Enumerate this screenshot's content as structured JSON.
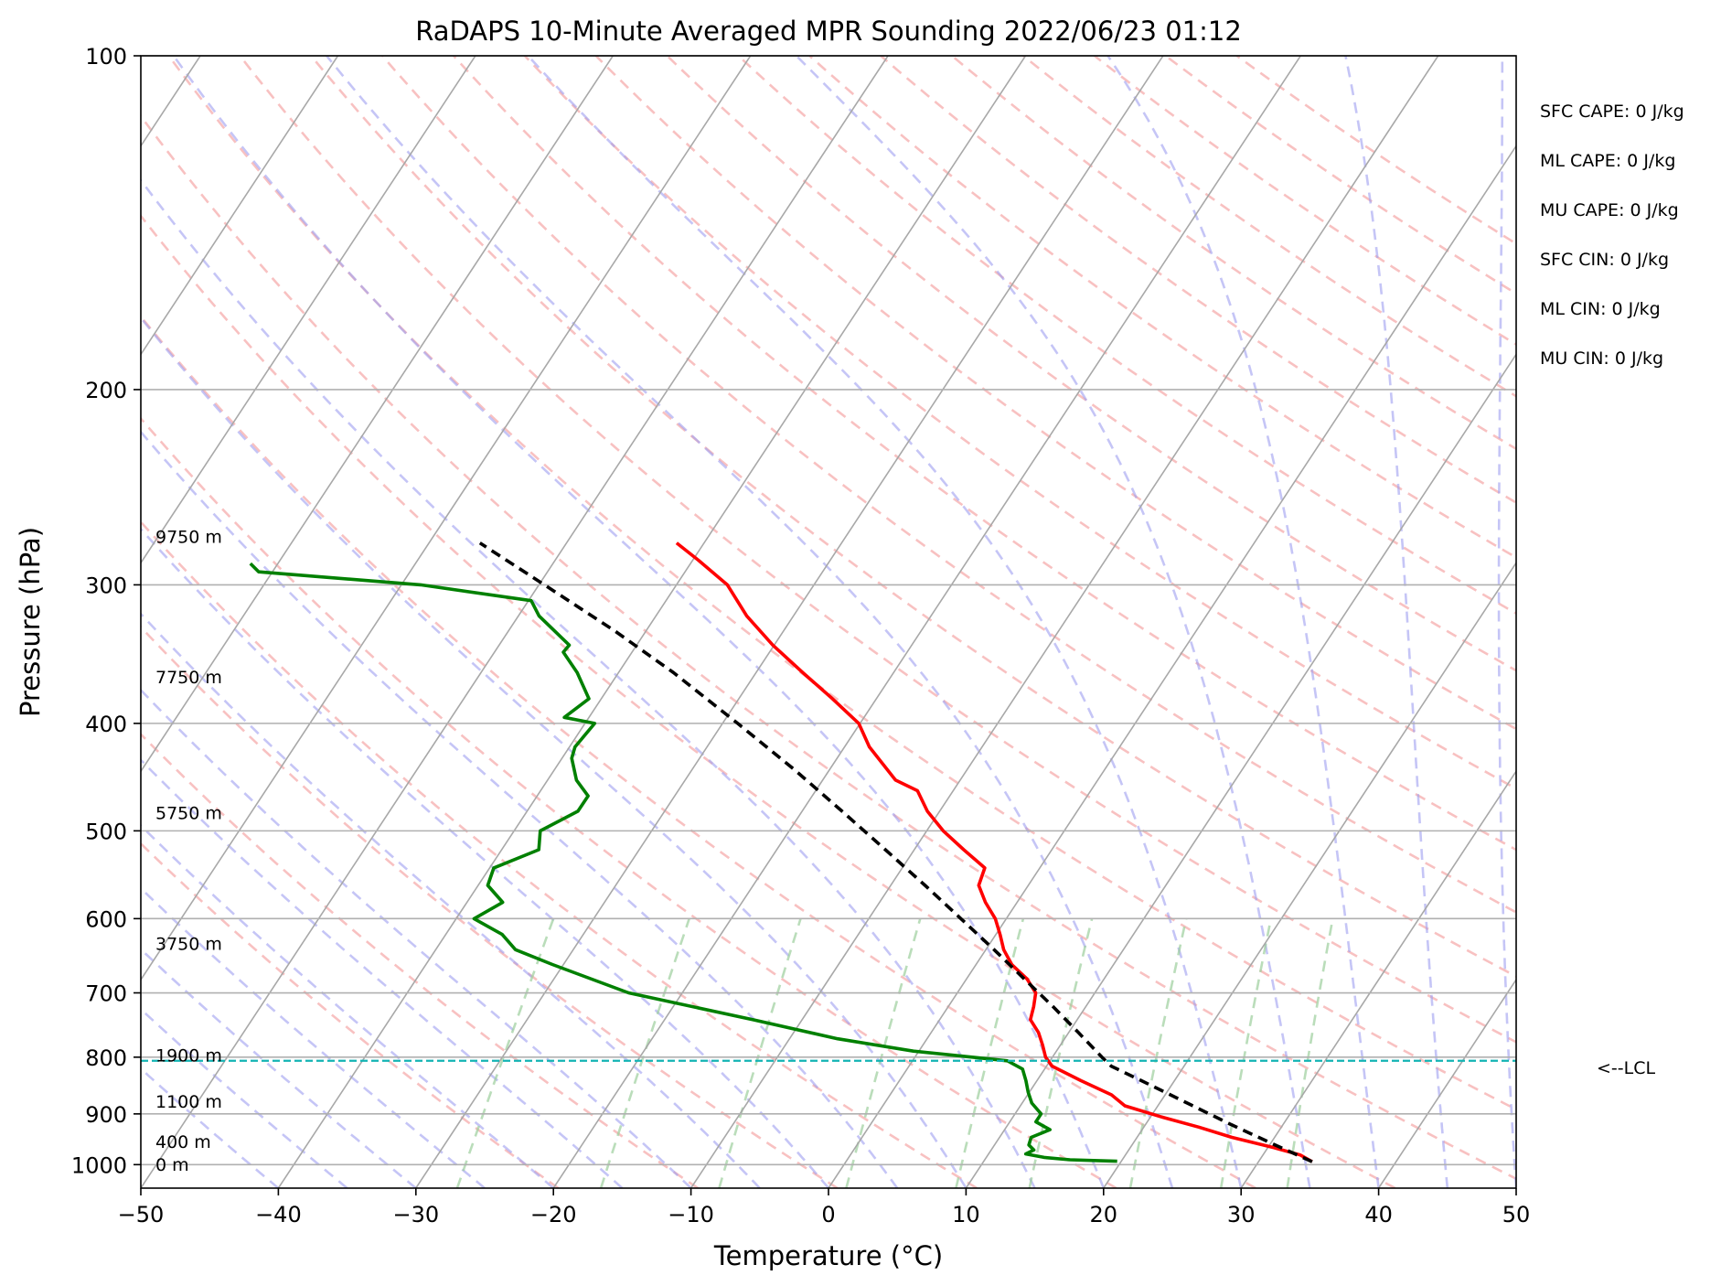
{
  "chart_data": {
    "type": "line",
    "title": "RaDAPS 10-Minute Averaged MPR Sounding 2022/06/23 01:12",
    "xlabel": "Temperature (°C)",
    "ylabel": "Pressure (hPa)",
    "xlim": [
      -50,
      50
    ],
    "ylim": [
      1050,
      100
    ],
    "y_scale": "log",
    "x_ticks": [
      -50,
      -40,
      -30,
      -20,
      -10,
      0,
      10,
      20,
      30,
      40,
      50
    ],
    "x_tick_labels": [
      "−50",
      "−40",
      "−30",
      "−20",
      "−10",
      "0",
      "10",
      "20",
      "30",
      "40",
      "50"
    ],
    "y_ticks": [
      100,
      200,
      300,
      400,
      500,
      600,
      700,
      800,
      900,
      1000
    ],
    "y_tick_labels": [
      "100",
      "200",
      "300",
      "400",
      "500",
      "600",
      "700",
      "800",
      "900",
      "1000"
    ],
    "grid": true,
    "series": [
      {
        "color": "#ff0000",
        "pressure": [
          994,
          980,
          965,
          945,
          925,
          905,
          885,
          865,
          840,
          815,
          800,
          780,
          760,
          740,
          720,
          700,
          680,
          660,
          640,
          620,
          600,
          580,
          560,
          540,
          520,
          500,
          480,
          460,
          450,
          420,
          400,
          380,
          360,
          340,
          320,
          300,
          285,
          275
        ],
        "temperature": [
          33.9,
          32.7,
          30.4,
          26.9,
          24.0,
          20.7,
          17.6,
          16.1,
          13.2,
          10.4,
          9.5,
          8.7,
          7.8,
          6.6,
          6.2,
          5.7,
          4.4,
          2.6,
          1.3,
          0.3,
          -0.8,
          -2.3,
          -3.6,
          -4.0,
          -6.4,
          -8.8,
          -10.9,
          -12.6,
          -14.7,
          -18.2,
          -20.1,
          -23.2,
          -26.6,
          -30.1,
          -33.4,
          -36.3,
          -39.6,
          -42.0
        ]
      },
      {
        "color": "#008000",
        "pressure": [
          993,
          990,
          985,
          978,
          970,
          960,
          945,
          930,
          915,
          900,
          880,
          860,
          840,
          820,
          806,
          790,
          770,
          740,
          700,
          660,
          640,
          620,
          600,
          580,
          560,
          540,
          520,
          500,
          480,
          465,
          450,
          430,
          420,
          400,
          395,
          380,
          360,
          345,
          340,
          320,
          310,
          300,
          292,
          287
        ],
        "dewpoint": [
          19.7,
          16.2,
          14.2,
          12.7,
          13.1,
          12.5,
          12.3,
          13.3,
          11.9,
          11.9,
          10.7,
          9.9,
          9.2,
          8.4,
          6.9,
          -0.4,
          -6.5,
          -13.6,
          -23.9,
          -30.8,
          -34.2,
          -35.9,
          -38.7,
          -37.4,
          -39.3,
          -39.7,
          -37.3,
          -38.1,
          -36.3,
          -36.3,
          -37.9,
          -39.3,
          -39.6,
          -39.3,
          -41.8,
          -40.9,
          -43.0,
          -45.0,
          -44.9,
          -48.5,
          -49.8,
          -58.6,
          -71.0,
          -72.0
        ]
      },
      {
        "color": "#000000",
        "pressure": [
          994,
          960,
          920,
          880,
          840,
          815,
          800,
          760,
          720,
          680,
          640,
          600,
          560,
          520,
          480,
          440,
          400,
          360,
          330,
          300,
          275
        ],
        "temperature": [
          33.9,
          30.4,
          26.2,
          22.0,
          17.6,
          14.7,
          13.6,
          10.7,
          7.6,
          4.2,
          0.6,
          -3.3,
          -7.5,
          -12.1,
          -17.1,
          -22.6,
          -28.9,
          -36.0,
          -42.3,
          -49.6,
          -56.3
        ]
      }
    ],
    "lcl": {
      "pressure": 806,
      "label": "<--LCL"
    },
    "height_labels": [
      {
        "text": "0 m",
        "pressure": 1013
      },
      {
        "text": "400 m",
        "pressure": 966
      },
      {
        "text": "1100 m",
        "pressure": 888
      },
      {
        "text": "1900 m",
        "pressure": 807
      },
      {
        "text": "3750 m",
        "pressure": 640
      },
      {
        "text": "5750 m",
        "pressure": 488
      },
      {
        "text": "7750 m",
        "pressure": 368
      },
      {
        "text": "9750 m",
        "pressure": 275
      }
    ],
    "annotations": [
      "SFC CAPE: 0 J/kg",
      "ML CAPE: 0 J/kg",
      "MU CAPE: 0 J/kg",
      "SFC CIN: 0 J/kg",
      "ML CIN: 0 J/kg",
      "MU CIN: 0 J/kg"
    ]
  }
}
